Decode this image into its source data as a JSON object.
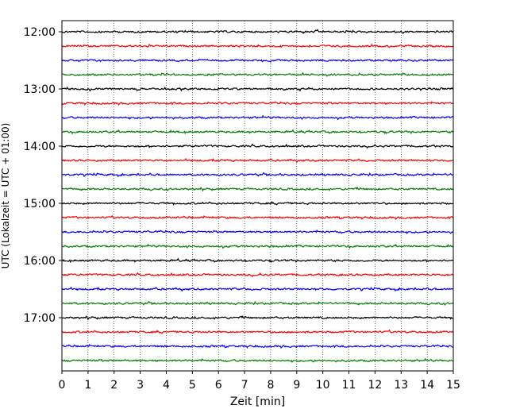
{
  "chart_data": {
    "type": "line",
    "title": "",
    "xlabel": "Zeit  [min]",
    "ylabel": "UTC (Lokalzeit = UTC + 01:00)",
    "xlim": [
      0,
      15
    ],
    "x_ticks": [
      "0",
      "1",
      "2",
      "3",
      "4",
      "5",
      "6",
      "7",
      "8",
      "9",
      "10",
      "11",
      "12",
      "13",
      "14",
      "15"
    ],
    "y_ticks": [
      "12:00",
      "13:00",
      "14:00",
      "15:00",
      "16:00",
      "17:00"
    ],
    "grid": true,
    "legend": "none",
    "trace_start": "12:00",
    "trace_interval_min": 15,
    "trace_count": 24,
    "trace_colors": [
      "#000000",
      "#ff0000",
      "#0000ff",
      "#008000"
    ],
    "series_type": "seismogram helicorder traces"
  }
}
